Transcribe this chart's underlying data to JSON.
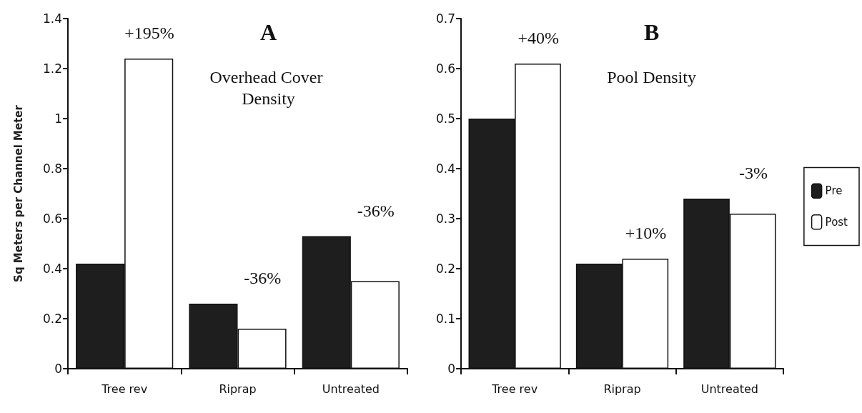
{
  "chart_data": [
    {
      "type": "bar",
      "title": "A",
      "subtitle": "Overhead Cover Density",
      "ylabel": "Sq Meters per Channel Meter",
      "categories": [
        "Tree rev",
        "Riprap",
        "Untreated"
      ],
      "series": [
        {
          "color": "#1e1e1e",
          "values": [
            0.42,
            0.26,
            0.53
          ]
        },
        {
          "color": "#ffffff",
          "values": [
            1.24,
            0.16,
            0.35
          ]
        }
      ],
      "ylim": [
        0,
        1.4
      ],
      "yticks": [
        0,
        0.2,
        0.4,
        0.6,
        0.8,
        1,
        1.2,
        1.4
      ],
      "grid": false,
      "legend": false,
      "annotations": [
        "+195%",
        "-36%",
        "-36%"
      ]
    },
    {
      "type": "bar",
      "title": "B",
      "subtitle": "Pool Density",
      "categories": [
        "Tree rev",
        "Riprap",
        "Untreated"
      ],
      "series": [
        {
          "name": "Pre",
          "color": "#1e1e1e",
          "values": [
            0.5,
            0.21,
            0.34
          ]
        },
        {
          "name": "Post",
          "color": "#ffffff",
          "values": [
            0.61,
            0.22,
            0.31
          ]
        }
      ],
      "ylim": [
        0,
        0.7
      ],
      "yticks": [
        0,
        0.1,
        0.2,
        0.3,
        0.4,
        0.5,
        0.6,
        0.7
      ],
      "grid": false,
      "legend": "right",
      "annotations": [
        "+40%",
        "+10%",
        "-3%"
      ]
    }
  ]
}
